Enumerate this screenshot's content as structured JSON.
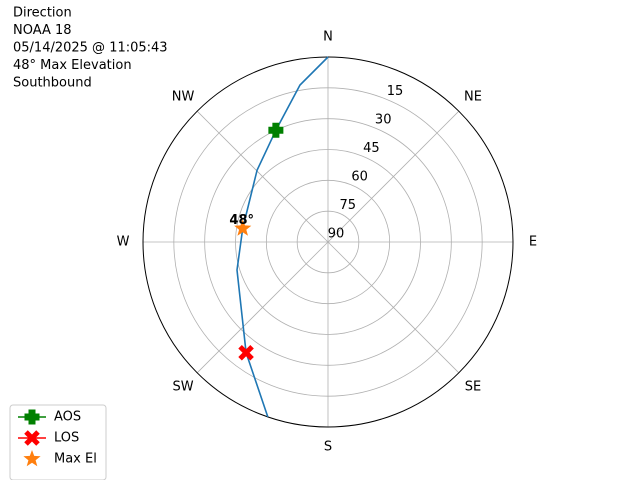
{
  "chart_data": {
    "type": "polar",
    "title_lines": [
      "Direction",
      "NOAA 18",
      "05/14/2025 @ 11:05:43",
      "48° Max Elevation",
      "Southbound"
    ],
    "rlim": [
      90,
      0
    ],
    "rticks": [
      15,
      30,
      45,
      60,
      75,
      90
    ],
    "thetaticks": [
      {
        "value": 0,
        "label": "N"
      },
      {
        "value": 45,
        "label": "NE"
      },
      {
        "value": 90,
        "label": "E"
      },
      {
        "value": 135,
        "label": "SE"
      },
      {
        "value": 180,
        "label": "S"
      },
      {
        "value": 225,
        "label": "SW"
      },
      {
        "value": 270,
        "label": "W"
      },
      {
        "value": 315,
        "label": "NW"
      }
    ],
    "grid": true,
    "legend": "lower left",
    "track": {
      "color": "#1f77b4",
      "theta": [
        0,
        349.9,
        335,
        315.4,
        279,
        252.9,
        216.5,
        199
      ],
      "r": [
        0,
        12.4,
        30,
        40.9,
        48,
        43.7,
        23,
        0
      ]
    },
    "markers": [
      {
        "name": "AOS",
        "color": "#008000",
        "shape": "plus",
        "theta": 335,
        "r": 30
      },
      {
        "name": "LOS",
        "color": "#ff0000",
        "shape": "x",
        "theta": 216.5,
        "r": 23
      },
      {
        "name": "Max El",
        "color": "#ff7f0e",
        "shape": "star",
        "theta": 279,
        "r": 48
      }
    ],
    "annotation": "48°"
  }
}
